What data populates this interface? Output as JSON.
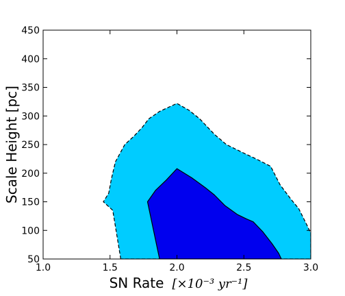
{
  "chart_data": {
    "type": "area",
    "title": "",
    "xlabel": "SN Rate",
    "xlabel_math": "[×10⁻³ yr⁻¹]",
    "ylabel": "Scale Height [pc]",
    "xlim": [
      1.0,
      3.0
    ],
    "ylim": [
      50,
      450
    ],
    "x_ticks": [
      "1.0",
      "1.5",
      "2.0",
      "2.5",
      "3.0"
    ],
    "y_ticks": [
      "50",
      "100",
      "150",
      "200",
      "250",
      "300",
      "350",
      "400",
      "450"
    ],
    "x_tick_values": [
      1.0,
      1.5,
      2.0,
      2.5,
      3.0
    ],
    "y_tick_values": [
      50,
      100,
      150,
      200,
      250,
      300,
      350,
      400,
      450
    ],
    "grid": false,
    "legend": "none",
    "series": [
      {
        "level": "outer",
        "color": "#00ccff",
        "edge": "dashed",
        "points": [
          [
            1.58,
            50
          ],
          [
            1.52,
            135
          ],
          [
            1.45,
            150
          ],
          [
            1.49,
            165
          ],
          [
            1.51,
            190
          ],
          [
            1.54,
            220
          ],
          [
            1.61,
            250
          ],
          [
            1.68,
            265
          ],
          [
            1.74,
            280
          ],
          [
            1.79,
            295
          ],
          [
            1.87,
            308
          ],
          [
            2.0,
            322
          ],
          [
            2.09,
            310
          ],
          [
            2.17,
            295
          ],
          [
            2.28,
            268
          ],
          [
            2.37,
            250
          ],
          [
            2.5,
            235
          ],
          [
            2.6,
            224
          ],
          [
            2.7,
            212
          ],
          [
            2.77,
            180
          ],
          [
            2.85,
            155
          ],
          [
            2.91,
            138
          ],
          [
            2.97,
            110
          ],
          [
            3.0,
            95
          ],
          [
            3.0,
            50
          ]
        ]
      },
      {
        "level": "inner",
        "color": "#0000ee",
        "edge": "solid",
        "points": [
          [
            1.87,
            50
          ],
          [
            1.78,
            150
          ],
          [
            1.84,
            170
          ],
          [
            1.92,
            188
          ],
          [
            2.0,
            208
          ],
          [
            2.11,
            192
          ],
          [
            2.21,
            175
          ],
          [
            2.28,
            162
          ],
          [
            2.36,
            143
          ],
          [
            2.45,
            128
          ],
          [
            2.52,
            120
          ],
          [
            2.57,
            115
          ],
          [
            2.64,
            98
          ],
          [
            2.71,
            77
          ],
          [
            2.76,
            60
          ],
          [
            2.78,
            50
          ]
        ]
      }
    ]
  }
}
